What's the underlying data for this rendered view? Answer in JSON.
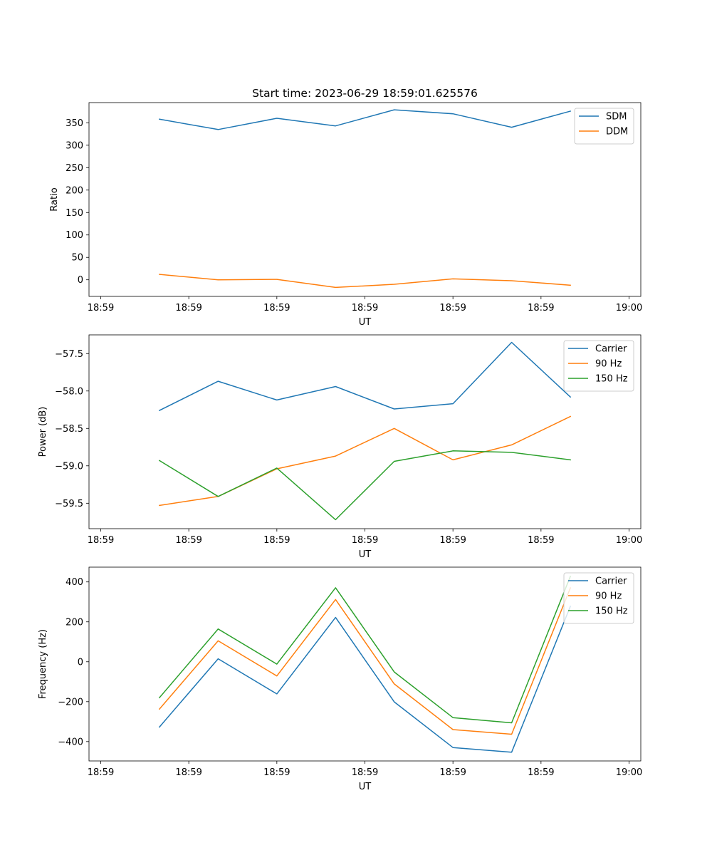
{
  "chart_data": [
    {
      "type": "line",
      "title": "Start time: 2023-06-29 18:59:01.625576",
      "xlabel": "UT",
      "ylabel": "Ratio",
      "x": [
        0.75,
        1.25,
        1.75,
        2.25,
        2.75,
        3.25,
        3.75,
        4.25
      ],
      "xlim": [
        0.15,
        4.85
      ],
      "xticks": [
        {
          "x": 0.25,
          "label": "18:59"
        },
        {
          "x": 1.0,
          "label": "18:59"
        },
        {
          "x": 1.75,
          "label": "18:59"
        },
        {
          "x": 2.5,
          "label": "18:59"
        },
        {
          "x": 3.25,
          "label": "18:59"
        },
        {
          "x": 4.0,
          "label": "18:59"
        },
        {
          "x": 4.75,
          "label": "19:00"
        }
      ],
      "ylim": [
        -37,
        395
      ],
      "yticks": [
        0,
        50,
        100,
        150,
        200,
        250,
        300,
        350
      ],
      "grid": false,
      "legend": "top-right",
      "series": [
        {
          "name": "SDM",
          "color": "#1f77b4",
          "values": [
            358,
            335,
            360,
            343,
            379,
            370,
            340,
            376
          ]
        },
        {
          "name": "DDM",
          "color": "#ff7f0e",
          "values": [
            12,
            0,
            1,
            -17,
            -10,
            2,
            -2,
            -12
          ]
        }
      ]
    },
    {
      "type": "line",
      "title": "",
      "xlabel": "UT",
      "ylabel": "Power (dB)",
      "x": [
        0.75,
        1.25,
        1.75,
        2.25,
        2.75,
        3.25,
        3.75,
        4.25
      ],
      "xlim": [
        0.15,
        4.85
      ],
      "xticks": [
        {
          "x": 0.25,
          "label": "18:59"
        },
        {
          "x": 1.0,
          "label": "18:59"
        },
        {
          "x": 1.75,
          "label": "18:59"
        },
        {
          "x": 2.5,
          "label": "18:59"
        },
        {
          "x": 3.25,
          "label": "18:59"
        },
        {
          "x": 4.0,
          "label": "18:59"
        },
        {
          "x": 4.75,
          "label": "19:00"
        }
      ],
      "ylim": [
        -59.84,
        -57.25
      ],
      "yticks": [
        -59.5,
        -59.0,
        -58.5,
        -58.0,
        -57.5
      ],
      "ytick_labels": [
        "−59.5",
        "−59.0",
        "−58.5",
        "−58.0",
        "−57.5"
      ],
      "grid": false,
      "legend": "top-right",
      "series": [
        {
          "name": "Carrier",
          "color": "#1f77b4",
          "values": [
            -58.26,
            -57.87,
            -58.12,
            -57.94,
            -58.24,
            -58.17,
            -57.35,
            -58.08
          ]
        },
        {
          "name": "90 Hz",
          "color": "#ff7f0e",
          "values": [
            -59.53,
            -59.41,
            -59.04,
            -58.87,
            -58.5,
            -58.92,
            -58.72,
            -58.34
          ]
        },
        {
          "name": "150 Hz",
          "color": "#2ca02c",
          "values": [
            -58.93,
            -59.41,
            -59.03,
            -59.72,
            -58.94,
            -58.8,
            -58.82,
            -58.92
          ]
        }
      ]
    },
    {
      "type": "line",
      "title": "",
      "xlabel": "UT",
      "ylabel": "Frequency (Hz)",
      "x": [
        0.75,
        1.25,
        1.75,
        2.25,
        2.75,
        3.25,
        3.75,
        4.25
      ],
      "xlim": [
        0.15,
        4.85
      ],
      "xticks": [
        {
          "x": 0.25,
          "label": "18:59"
        },
        {
          "x": 1.0,
          "label": "18:59"
        },
        {
          "x": 1.75,
          "label": "18:59"
        },
        {
          "x": 2.5,
          "label": "18:59"
        },
        {
          "x": 3.25,
          "label": "18:59"
        },
        {
          "x": 4.0,
          "label": "18:59"
        },
        {
          "x": 4.75,
          "label": "19:00"
        }
      ],
      "ylim": [
        -497,
        474
      ],
      "yticks": [
        -400,
        -200,
        0,
        200,
        400
      ],
      "ytick_labels": [
        "−400",
        "−200",
        "0",
        "200",
        "400"
      ],
      "grid": false,
      "legend": "top-right",
      "series": [
        {
          "name": "Carrier",
          "color": "#1f77b4",
          "values": [
            -327,
            15,
            -161,
            222,
            -201,
            -430,
            -453,
            278
          ]
        },
        {
          "name": "90 Hz",
          "color": "#ff7f0e",
          "values": [
            -237,
            105,
            -71,
            312,
            -111,
            -340,
            -363,
            370
          ]
        },
        {
          "name": "150 Hz",
          "color": "#2ca02c",
          "values": [
            -180,
            164,
            -12,
            371,
            -51,
            -280,
            -306,
            428
          ]
        }
      ]
    }
  ]
}
